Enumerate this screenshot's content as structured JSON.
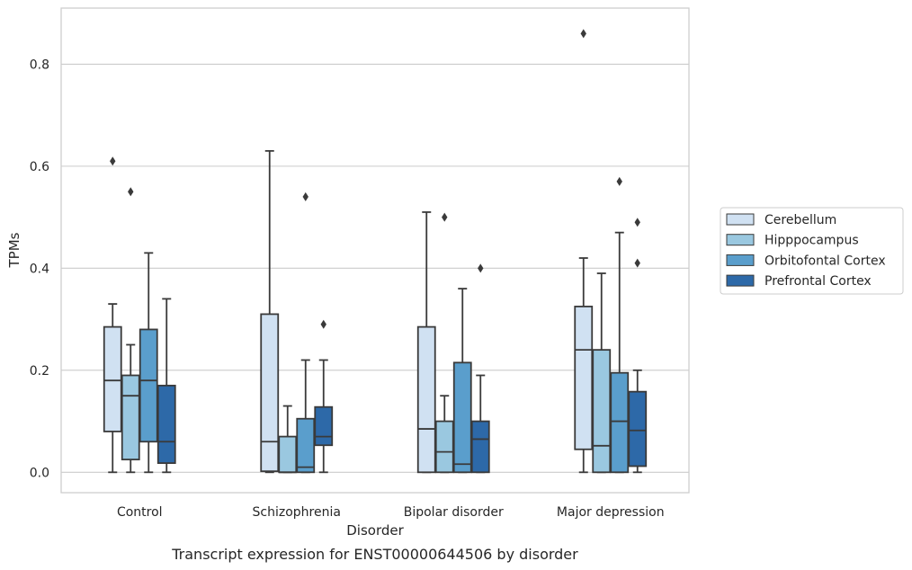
{
  "caption": "Transcript expression for ENST00000644506 by disorder",
  "chart_data": {
    "type": "box",
    "title": "",
    "xlabel": "Disorder",
    "ylabel": "TPMs",
    "categories": [
      "Control",
      "Schizophrenia",
      "Bipolar disorder",
      "Major depression"
    ],
    "ylim": [
      -0.04,
      0.91
    ],
    "yticks": [
      0.0,
      0.2,
      0.4,
      0.6,
      0.8
    ],
    "ytick_labels": [
      "0.0",
      "0.2",
      "0.4",
      "0.6",
      "0.8"
    ],
    "grid": "horizontal",
    "legend_position": "right",
    "series": [
      {
        "name": "Cerebellum",
        "color": "#d0e1f2",
        "boxes": [
          {
            "whislo": 0.0,
            "q1": 0.08,
            "med": 0.18,
            "q3": 0.285,
            "whishi": 0.33,
            "fliers": [
              0.61
            ]
          },
          {
            "whislo": 0.0,
            "q1": 0.002,
            "med": 0.06,
            "q3": 0.31,
            "whishi": 0.63,
            "fliers": []
          },
          {
            "whislo": 0.0,
            "q1": 0.0,
            "med": 0.085,
            "q3": 0.285,
            "whishi": 0.51,
            "fliers": []
          },
          {
            "whislo": 0.0,
            "q1": 0.045,
            "med": 0.24,
            "q3": 0.325,
            "whishi": 0.42,
            "fliers": [
              0.86
            ]
          }
        ]
      },
      {
        "name": "Hipppocampus",
        "color": "#9ac8e0",
        "boxes": [
          {
            "whislo": 0.0,
            "q1": 0.025,
            "med": 0.15,
            "q3": 0.19,
            "whishi": 0.25,
            "fliers": [
              0.55
            ]
          },
          {
            "whislo": 0.0,
            "q1": 0.0,
            "med": 0.0,
            "q3": 0.07,
            "whishi": 0.13,
            "fliers": []
          },
          {
            "whislo": 0.0,
            "q1": 0.0,
            "med": 0.04,
            "q3": 0.1,
            "whishi": 0.15,
            "fliers": [
              0.5
            ]
          },
          {
            "whislo": 0.0,
            "q1": 0.0,
            "med": 0.052,
            "q3": 0.24,
            "whishi": 0.39,
            "fliers": []
          }
        ]
      },
      {
        "name": "Orbitofontal Cortex",
        "color": "#5a9ecc",
        "boxes": [
          {
            "whislo": 0.0,
            "q1": 0.06,
            "med": 0.18,
            "q3": 0.28,
            "whishi": 0.43,
            "fliers": []
          },
          {
            "whislo": 0.0,
            "q1": 0.0,
            "med": 0.01,
            "q3": 0.105,
            "whishi": 0.22,
            "fliers": [
              0.54
            ]
          },
          {
            "whislo": 0.0,
            "q1": 0.0,
            "med": 0.016,
            "q3": 0.215,
            "whishi": 0.36,
            "fliers": []
          },
          {
            "whislo": 0.0,
            "q1": 0.0,
            "med": 0.1,
            "q3": 0.195,
            "whishi": 0.47,
            "fliers": [
              0.57
            ]
          }
        ]
      },
      {
        "name": "Prefrontal Cortex",
        "color": "#2d69a8",
        "boxes": [
          {
            "whislo": 0.0,
            "q1": 0.018,
            "med": 0.06,
            "q3": 0.17,
            "whishi": 0.34,
            "fliers": []
          },
          {
            "whislo": 0.0,
            "q1": 0.053,
            "med": 0.07,
            "q3": 0.128,
            "whishi": 0.22,
            "fliers": [
              0.29
            ]
          },
          {
            "whislo": 0.0,
            "q1": 0.0,
            "med": 0.065,
            "q3": 0.1,
            "whishi": 0.19,
            "fliers": [
              0.4
            ]
          },
          {
            "whislo": 0.0,
            "q1": 0.012,
            "med": 0.082,
            "q3": 0.158,
            "whishi": 0.2,
            "fliers": [
              0.49,
              0.41
            ]
          }
        ]
      }
    ]
  }
}
